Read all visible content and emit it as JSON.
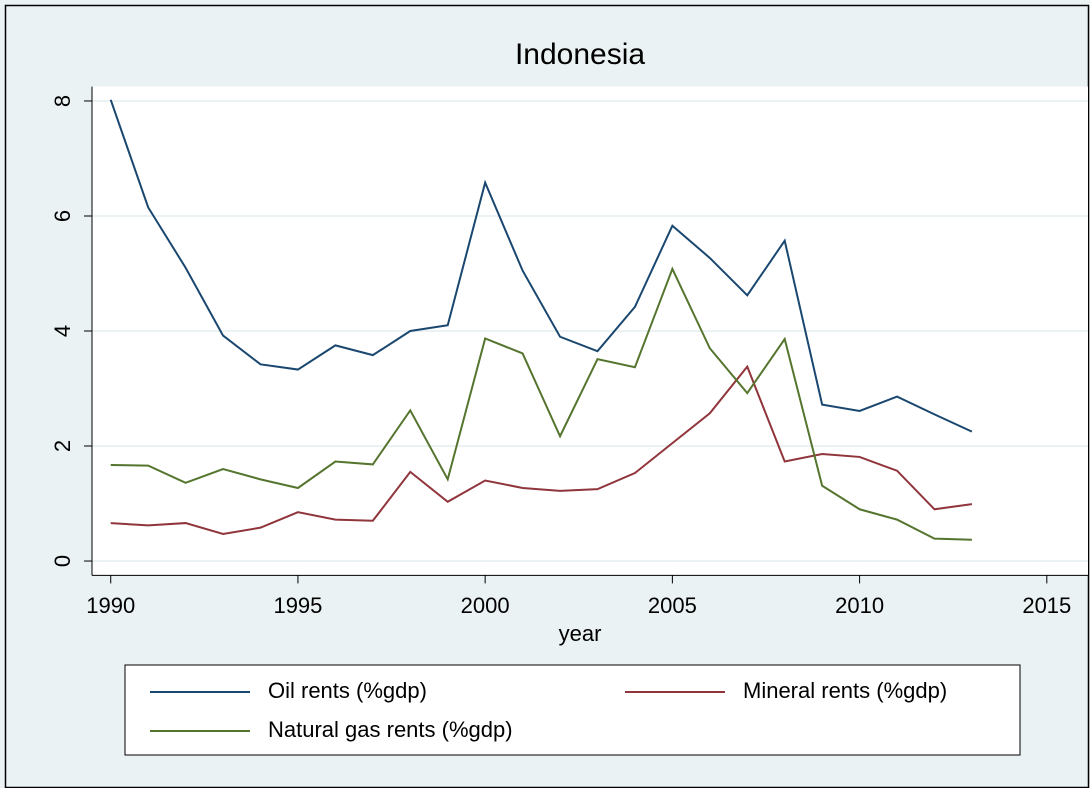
{
  "chart_data": {
    "type": "line",
    "title": "Indonesia",
    "x_label": "year",
    "x": [
      1990,
      1991,
      1992,
      1993,
      1994,
      1995,
      1996,
      1997,
      1998,
      1999,
      2000,
      2001,
      2002,
      2003,
      2004,
      2005,
      2006,
      2007,
      2008,
      2009,
      2010,
      2011,
      2012,
      2013
    ],
    "series": [
      {
        "name": "Oil rents (%gdp)",
        "color": "#1a476f",
        "values": [
          8.02,
          6.15,
          5.1,
          3.92,
          3.42,
          3.33,
          3.75,
          3.58,
          4.0,
          4.1,
          6.58,
          5.05,
          3.9,
          3.65,
          4.42,
          5.83,
          5.27,
          4.62,
          5.57,
          2.72,
          2.61,
          2.86,
          2.55,
          2.25
        ]
      },
      {
        "name": "Mineral rents (%gdp)",
        "color": "#90353b",
        "values": [
          0.66,
          0.62,
          0.66,
          0.47,
          0.58,
          0.85,
          0.72,
          0.7,
          1.55,
          1.03,
          1.4,
          1.27,
          1.22,
          1.25,
          1.53,
          2.05,
          2.57,
          3.38,
          1.73,
          1.86,
          1.81,
          1.57,
          0.9,
          0.99
        ]
      },
      {
        "name": "Natural gas rents (%gdp)",
        "color": "#55752f",
        "values": [
          1.67,
          1.66,
          1.36,
          1.6,
          1.42,
          1.27,
          1.73,
          1.68,
          2.62,
          1.42,
          3.87,
          3.61,
          2.17,
          3.51,
          3.37,
          5.08,
          3.7,
          2.92,
          3.86,
          1.31,
          0.9,
          0.72,
          0.39,
          0.37
        ]
      }
    ],
    "xlim": [
      1989.5,
      2016.1
    ],
    "xticks": [
      1990,
      1995,
      2000,
      2005,
      2010,
      2015
    ],
    "ylim": [
      -0.25,
      8.25
    ],
    "yticks": [
      0,
      2,
      4,
      6,
      8
    ],
    "grid": true
  }
}
